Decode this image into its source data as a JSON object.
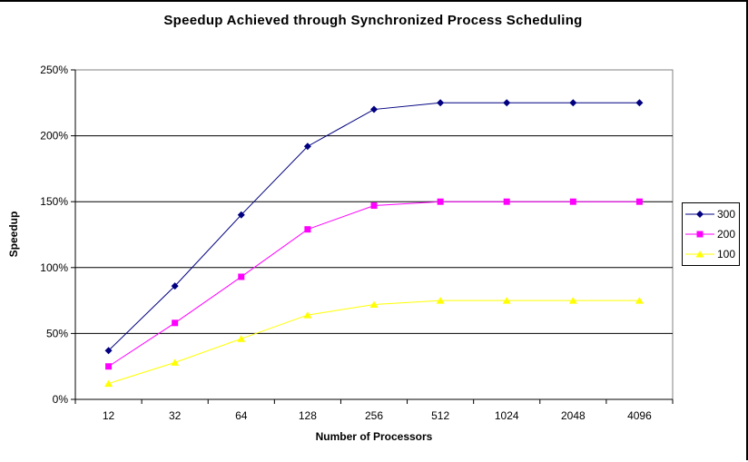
{
  "chart_data": {
    "type": "line",
    "title": "Speedup Achieved through Synchronized Process Scheduling",
    "xlabel": "Number of Processors",
    "ylabel": "Speedup",
    "categories": [
      "12",
      "32",
      "64",
      "128",
      "256",
      "512",
      "1024",
      "2048",
      "4096"
    ],
    "series": [
      {
        "name": "300",
        "color": "#000080",
        "marker": "diamond",
        "values": [
          37,
          86,
          140,
          192,
          220,
          225,
          225,
          225,
          225
        ]
      },
      {
        "name": "200",
        "color": "#FF00FF",
        "marker": "square",
        "values": [
          25,
          58,
          93,
          129,
          147,
          150,
          150,
          150,
          150
        ]
      },
      {
        "name": "100",
        "color": "#FFFF00",
        "marker": "triangle",
        "values": [
          12,
          28,
          46,
          64,
          72,
          75,
          75,
          75,
          75
        ]
      }
    ],
    "ylim": [
      0,
      250
    ],
    "ytick_step": 50,
    "ytick_labels": [
      "0%",
      "50%",
      "100%",
      "150%",
      "200%",
      "250%"
    ],
    "grid": "horizontal",
    "legend_position": "right",
    "legend_items": [
      "300",
      "200",
      "100"
    ],
    "colors": {
      "plot_border": "#808080",
      "gridline": "#000000",
      "axis": "#000000",
      "background": "#FFFFFF",
      "frame_border": "#000000",
      "text": "#000000"
    }
  }
}
